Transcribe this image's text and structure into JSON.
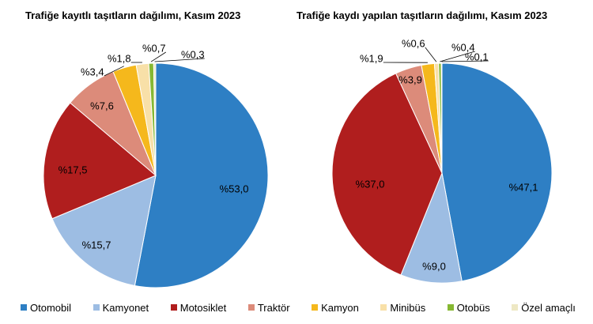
{
  "chart_data": [
    {
      "type": "pie",
      "title": "Trafiğe kayıtlı taşıtların dağılımı, Kasım 2023",
      "categories": [
        "Otomobil",
        "Kamyonet",
        "Motosiklet",
        "Traktör",
        "Kamyon",
        "Minibüs",
        "Otobüs",
        "Özel amaçlı"
      ],
      "values": [
        53.0,
        15.7,
        17.5,
        7.6,
        3.4,
        1.8,
        0.7,
        0.3
      ],
      "labels": [
        "%53,0",
        "%15,7",
        "%17,5",
        "%7,6",
        "%3,4",
        "%1,8",
        "%0,7",
        "%0,3"
      ]
    },
    {
      "type": "pie",
      "title": "Trafiğe kaydı yapılan taşıtların dağılımı, Kasım 2023",
      "categories": [
        "Otomobil",
        "Kamyonet",
        "Motosiklet",
        "Traktör",
        "Kamyon",
        "Minibüs",
        "Otobüs",
        "Özel amaçlı"
      ],
      "values": [
        47.1,
        9.0,
        37.0,
        3.9,
        1.9,
        0.6,
        0.4,
        0.1
      ],
      "labels": [
        "%47,1",
        "%9,0",
        "%37,0",
        "%3,9",
        "%1,9",
        "%0,6",
        "%0,4",
        "%0,1"
      ]
    }
  ],
  "legend": [
    {
      "label": "Otomobil",
      "color": "#2E7FC4"
    },
    {
      "label": "Kamyonet",
      "color": "#9DBDE3"
    },
    {
      "label": "Motosiklet",
      "color": "#B01E1E"
    },
    {
      "label": "Traktör",
      "color": "#DC8B7A"
    },
    {
      "label": "Kamyon",
      "color": "#F5B81C"
    },
    {
      "label": "Minibüs",
      "color": "#F8E0A8"
    },
    {
      "label": "Otobüs",
      "color": "#86B832"
    },
    {
      "label": "Özel amaçlı",
      "color": "#EEE8C4"
    }
  ]
}
